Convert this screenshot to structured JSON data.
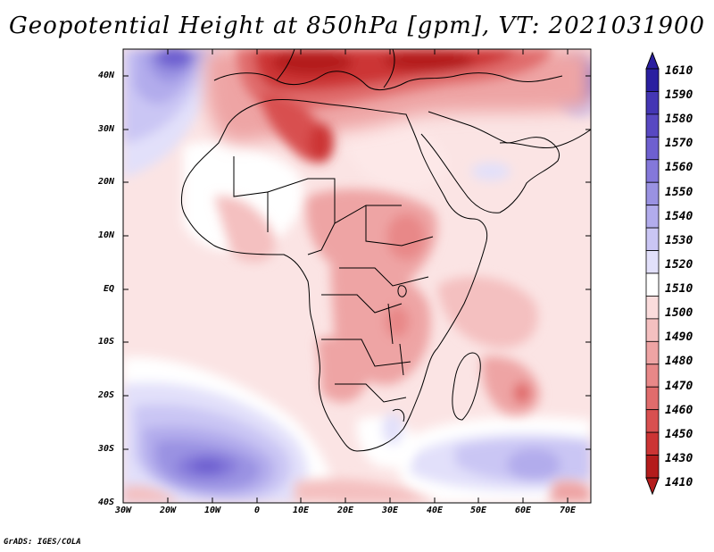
{
  "title": "Geopotential Height at 850hPa [gpm], VT: 2021031900",
  "credit": "GrADS: IGES/COLA",
  "lat_labels": [
    "40N",
    "30N",
    "20N",
    "10N",
    "EQ",
    "10S",
    "20S",
    "30S",
    "40S"
  ],
  "lon_labels": [
    "30W",
    "20W",
    "10W",
    "0",
    "10E",
    "20E",
    "30E",
    "40E",
    "50E",
    "60E",
    "70E"
  ],
  "colorbar": {
    "labels": [
      "1610",
      "1590",
      "1580",
      "1570",
      "1560",
      "1550",
      "1540",
      "1530",
      "1520",
      "1510",
      "1500",
      "1490",
      "1480",
      "1470",
      "1460",
      "1450",
      "1430",
      "1410"
    ],
    "colors": [
      "#2a1fa0",
      "#4436b4",
      "#5848c2",
      "#6e60d0",
      "#8478da",
      "#9a92e2",
      "#b2acec",
      "#cac6f4",
      "#e2e0fa",
      "#ffffff",
      "#fadcdc",
      "#f4c0c0",
      "#eea4a4",
      "#e88888",
      "#e06c6c",
      "#d85050",
      "#cc3434",
      "#b41c1c"
    ]
  },
  "map": {
    "region": "Africa and surrounding oceans, 30W-75E, 40S-45N",
    "field": "Geopotential height at 850hPa (gpm)"
  }
}
